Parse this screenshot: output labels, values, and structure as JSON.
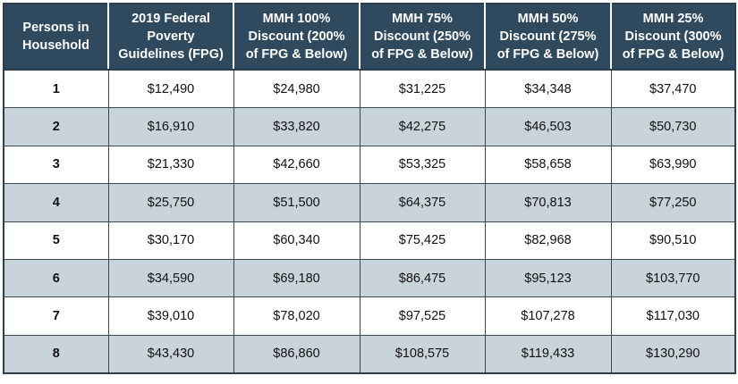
{
  "table": {
    "headers": [
      [
        "Persons in",
        "Household"
      ],
      [
        "2019 Federal",
        "Poverty",
        "Guidelines (FPG)"
      ],
      [
        "MMH 100%",
        "Discount (200%",
        "of FPG & Below)"
      ],
      [
        "MMH 75%",
        "Discount (250%",
        "of FPG & Below)"
      ],
      [
        "MMH 50%",
        "Discount (275%",
        "of FPG & Below)"
      ],
      [
        "MMH 25%",
        "Discount (300%",
        "of FPG & Below)"
      ]
    ],
    "rows": [
      [
        "1",
        "$12,490",
        "$24,980",
        "$31,225",
        "$34,348",
        "$37,470"
      ],
      [
        "2",
        "$16,910",
        "$33,820",
        "$42,275",
        "$46,503",
        "$50,730"
      ],
      [
        "3",
        "$21,330",
        "$42,660",
        "$53,325",
        "$58,658",
        "$63,990"
      ],
      [
        "4",
        "$25,750",
        "$51,500",
        "$64,375",
        "$70,813",
        "$77,250"
      ],
      [
        "5",
        "$30,170",
        "$60,340",
        "$75,425",
        "$82,968",
        "$90,510"
      ],
      [
        "6",
        "$34,590",
        "$69,180",
        "$86,475",
        "$95,123",
        "$103,770"
      ],
      [
        "7",
        "$39,010",
        "$78,020",
        "$97,525",
        "$107,278",
        "$117,030"
      ],
      [
        "8",
        "$43,430",
        "$86,860",
        "$108,575",
        "$119,433",
        "$130,290"
      ]
    ]
  },
  "colors": {
    "header_bg": "#2f4a5e",
    "header_text": "#ffffff",
    "stripe_bg": "#c9d3da",
    "row_bg": "#ffffff",
    "grid": "#3a4a55"
  }
}
